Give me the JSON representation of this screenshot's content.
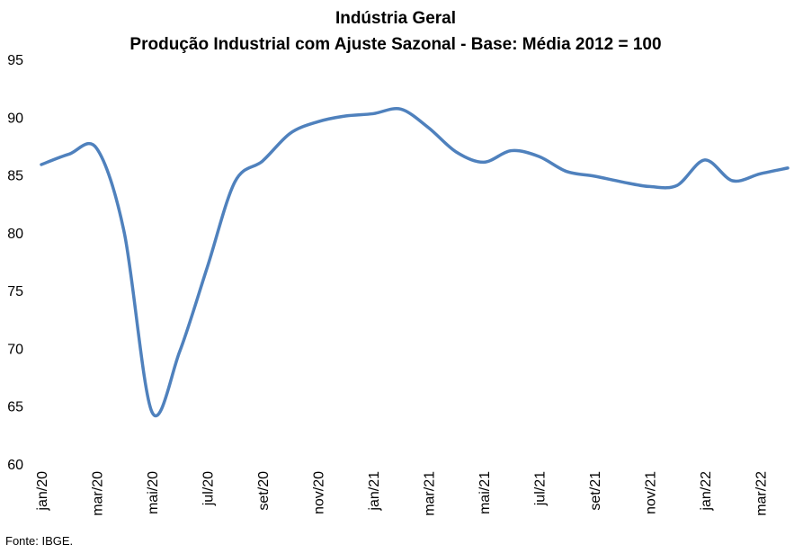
{
  "chart_data": {
    "type": "line",
    "title": "Indústria Geral",
    "subtitle": "Produção Industrial com Ajuste Sazonal - Base: Média 2012 = 100",
    "xlabel": "",
    "ylabel": "",
    "ylim": [
      60,
      95
    ],
    "yticks": [
      "60",
      "65",
      "70",
      "75",
      "80",
      "85",
      "90",
      "95"
    ],
    "grid": false,
    "legend": "none",
    "line_color": "#4f81bd",
    "x": [
      "jan/20",
      "fev/20",
      "mar/20",
      "abr/20",
      "mai/20",
      "jun/20",
      "jul/20",
      "ago/20",
      "set/20",
      "out/20",
      "nov/20",
      "dez/20",
      "jan/21",
      "fev/21",
      "mar/21",
      "abr/21",
      "mai/21",
      "jun/21",
      "jul/21",
      "ago/21",
      "set/21",
      "out/21",
      "nov/21",
      "dez/21",
      "jan/22",
      "fev/22",
      "mar/22",
      "abr/22"
    ],
    "x_tick_labels": [
      "jan/20",
      "mar/20",
      "mai/20",
      "jul/20",
      "set/20",
      "nov/20",
      "jan/21",
      "mar/21",
      "mai/21",
      "jul/21",
      "set/21",
      "nov/21",
      "jan/22",
      "mar/22"
    ],
    "series": [
      {
        "values": [
          85.9,
          86.8,
          87.3,
          80.0,
          64.5,
          69.7,
          77.0,
          84.4,
          86.2,
          88.6,
          89.6,
          90.1,
          90.3,
          90.7,
          89.1,
          87.0,
          86.1,
          87.1,
          86.6,
          85.3,
          84.9,
          84.4,
          84.0,
          84.1,
          86.3,
          84.5,
          85.1,
          85.6
        ]
      }
    ]
  },
  "footer": {
    "source": "Fonte: IBGE."
  }
}
